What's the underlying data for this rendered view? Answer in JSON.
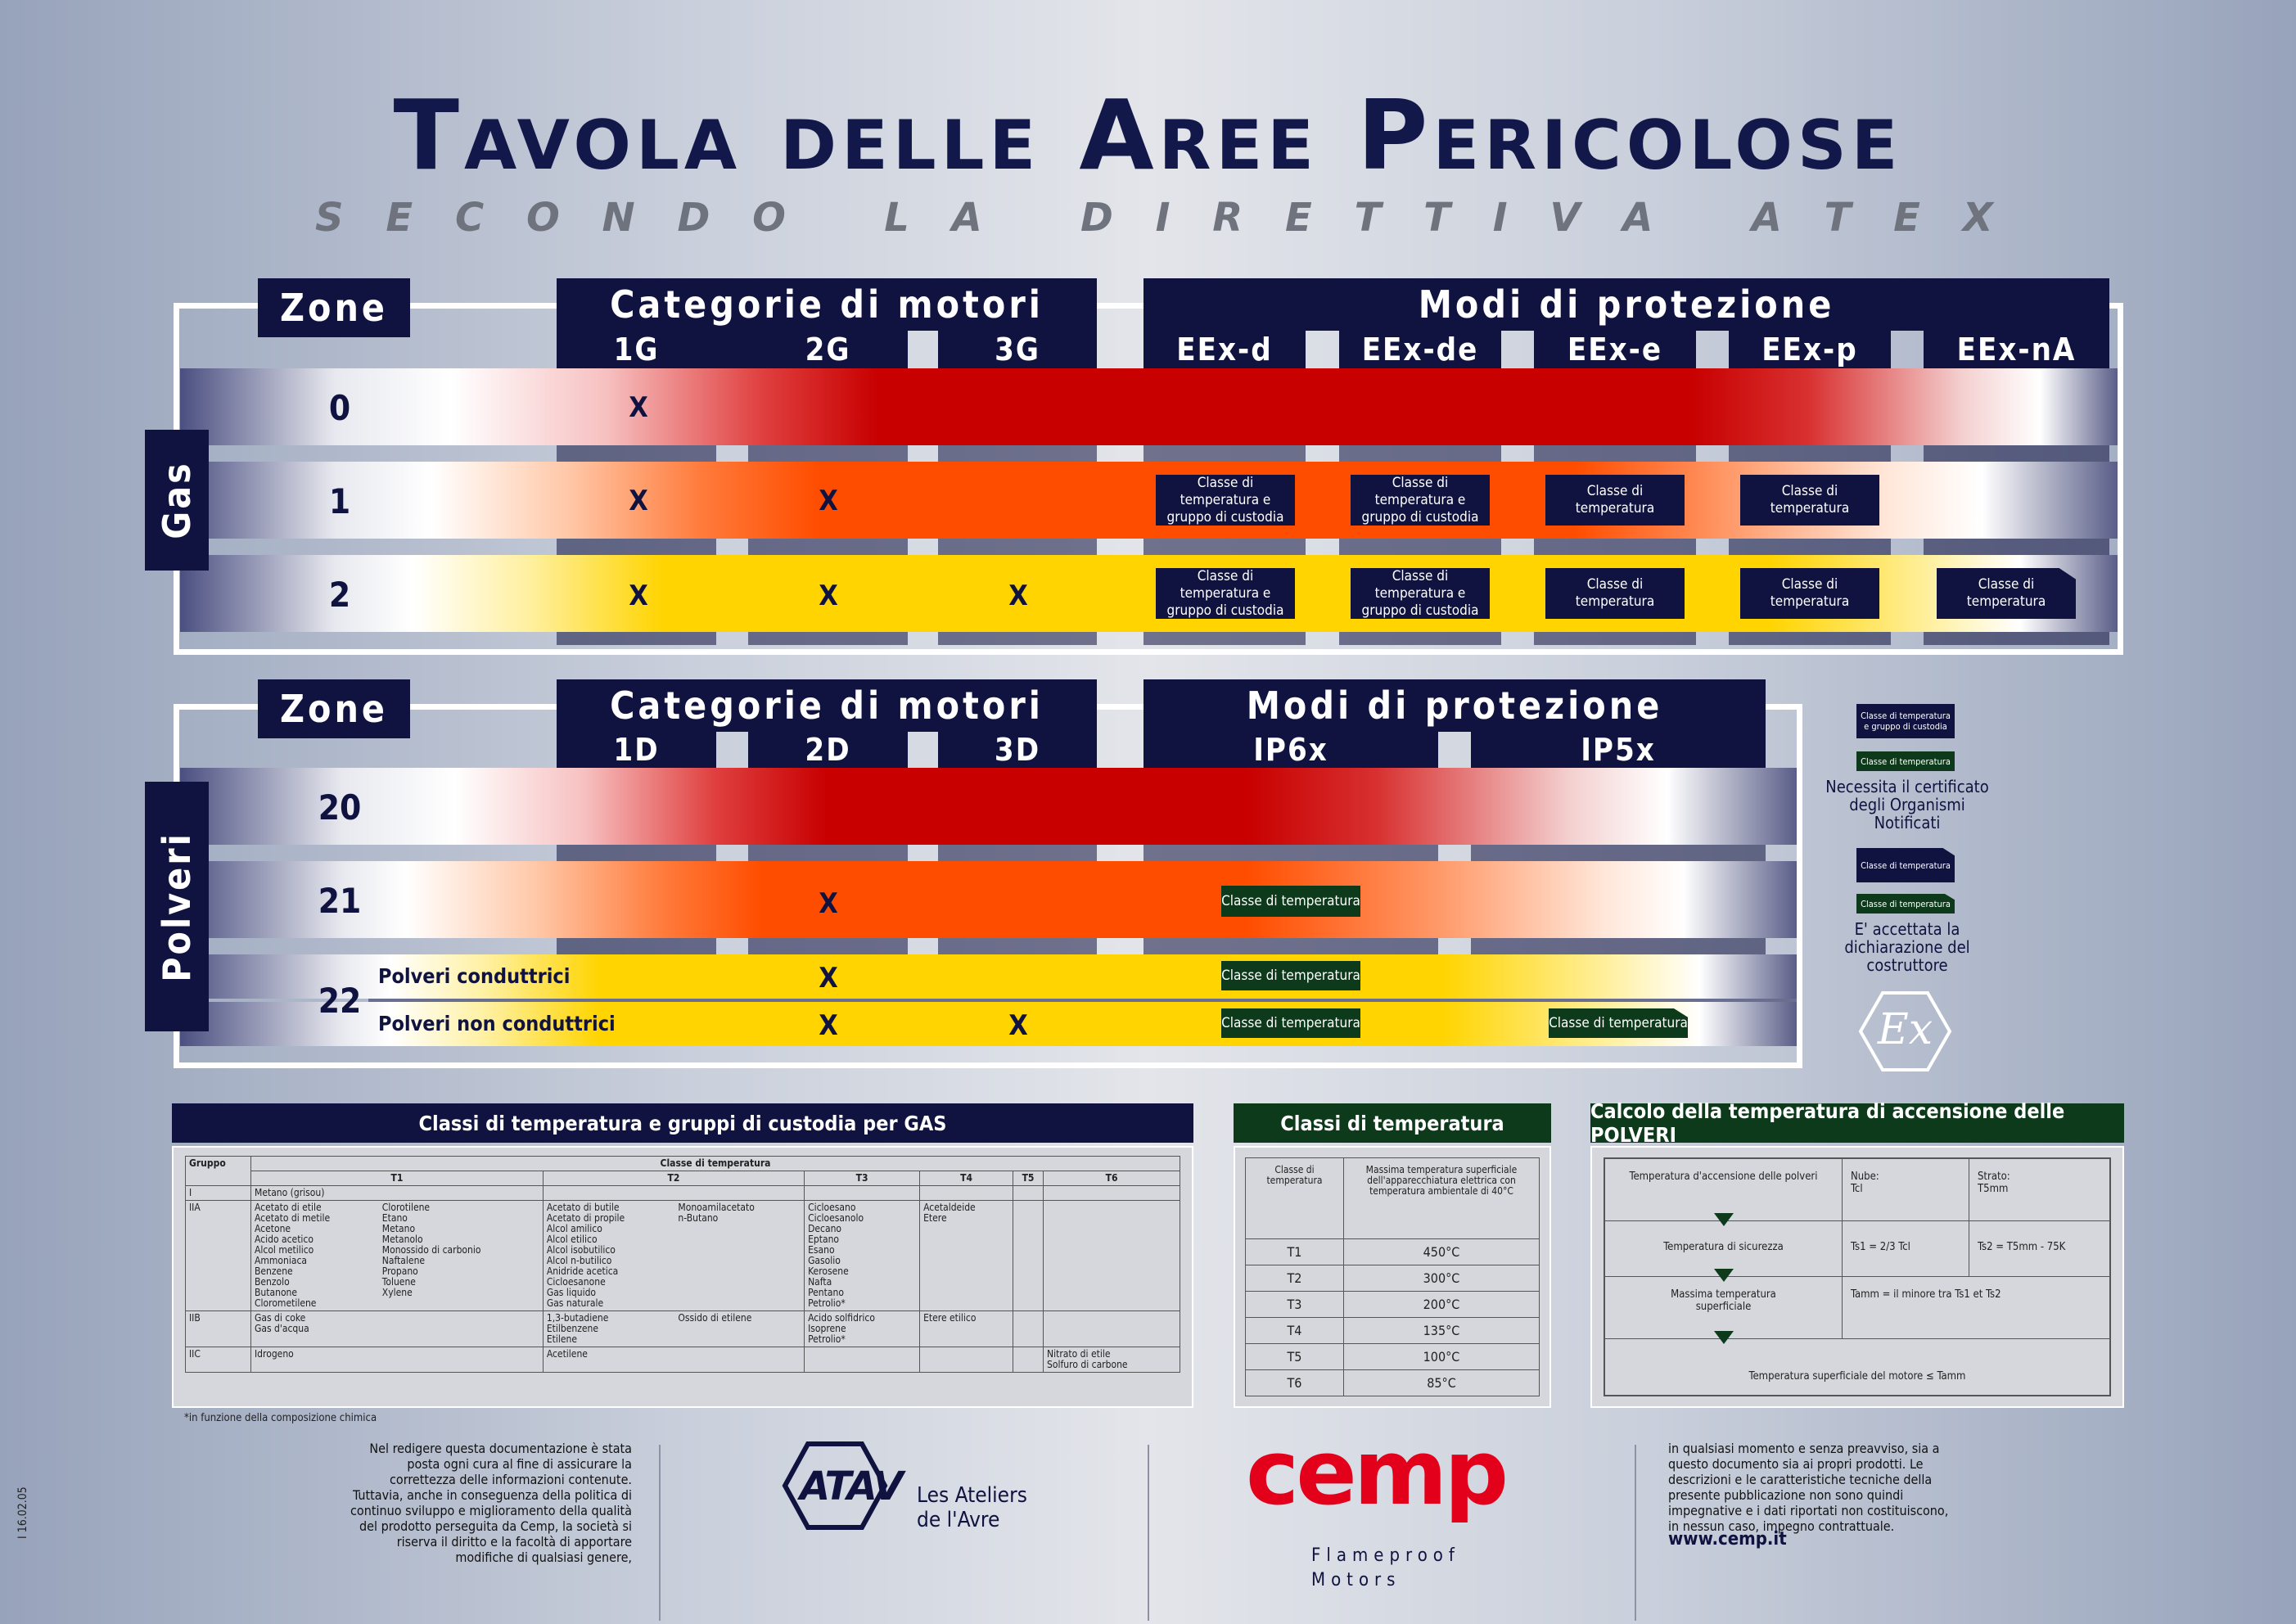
{
  "header": {
    "title": "Tavola delle Aree Pericolose",
    "subtitle_letters": [
      "S",
      "E",
      "C",
      "O",
      "N",
      "D",
      "O",
      "",
      "L",
      "A",
      "",
      "D",
      "I",
      "R",
      "E",
      "T",
      "T",
      "I",
      "V",
      "A",
      "",
      "A",
      "T",
      "E",
      "X"
    ]
  },
  "gas": {
    "label": "Gas",
    "zone_header": "Zone",
    "cat_header": "Categorie di motori",
    "cats": [
      "1G",
      "2G",
      "3G"
    ],
    "modi_header": "Modi di protezione",
    "modi": [
      "EEx-d",
      "EEx-de",
      "EEx-e",
      "EEx-p",
      "EEx-nA"
    ],
    "rows": [
      {
        "zone": "0",
        "x": [
          "X",
          "",
          ""
        ]
      },
      {
        "zone": "1",
        "x": [
          "X",
          "X",
          ""
        ]
      },
      {
        "zone": "2",
        "x": [
          "X",
          "X",
          "X"
        ]
      }
    ],
    "box_tg": "Classe di temperatura e gruppo di custodia",
    "box_t": "Classe di temperatura"
  },
  "polveri": {
    "label": "Polveri",
    "zone_header": "Zone",
    "cat_header": "Categorie di motori",
    "cats": [
      "1D",
      "2D",
      "3D"
    ],
    "modi_header": "Modi di protezione",
    "modi": [
      "IP6x",
      "IP5x"
    ],
    "zones": [
      "20",
      "21",
      "22"
    ],
    "cond": "Polveri conduttrici",
    "noncond": "Polveri non conduttrici",
    "x": "X",
    "box_t": "Classe di temperatura"
  },
  "legend": {
    "box1": "Classe di temperatura e gruppo di custodia",
    "box2": "Classe di temperatura",
    "text1": "Necessita il certificato degli Organismi Notificati",
    "box3": "Classe di temperatura",
    "box4": "Classe di temperatura",
    "text2": "E' accettata la dichiarazione del costruttore",
    "ex": "Ex"
  },
  "gas_table": {
    "title": "Classi di temperatura e gruppi di custodia per GAS",
    "gruppo": "Gruppo",
    "classe": "Classe di temperatura",
    "cols": [
      "T1",
      "T2",
      "T3",
      "T4",
      "T5",
      "T6"
    ],
    "rows": [
      {
        "g": "I",
        "t1a": "Metano (grisou)",
        "t1b": "",
        "t2a": "",
        "t2b": "",
        "t3": "",
        "t4": "",
        "t5": "",
        "t6": ""
      },
      {
        "g": "IIA",
        "t1a": "Acetato di etile\nAcetato di metile\nAcetone\nAcido acetico\nAlcol metilico\nAmmoniaca\nBenzene\nBenzolo\nButanone\nClorometilene",
        "t1b": "Clorotilene\nEtano\nMetano\nMetanolo\nMonossido di carbonio\nNaftalene\nPropano\nToluene\nXylene",
        "t2a": "Acetato di butile\nAcetato di propile\nAlcol amilico\nAlcol etilico\nAlcol isobutilico\nAlcol n-butilico\nAnidride acetica\nCicloesanone\nGas liquido\nGas naturale",
        "t2b": "Monoamilacetato\nn-Butano",
        "t3": "Cicloesano\nCicloesanolo\nDecano\nEptano\nEsano\nGasolio\nKerosene\nNafta\nPentano\nPetrolio*",
        "t4": "Acetaldeide\nEtere",
        "t5": "",
        "t6": ""
      },
      {
        "g": "IIB",
        "t1a": "Gas di coke\nGas d'acqua",
        "t1b": "",
        "t2a": "1,3-butadiene\nEtilbenzene\nEtilene",
        "t2b": "Ossido di etilene",
        "t3": "Acido solfidrico\nIsoprene\nPetrolio*",
        "t4": "Etere etilico",
        "t5": "",
        "t6": ""
      },
      {
        "g": "IIC",
        "t1a": "Idrogeno",
        "t1b": "",
        "t2a": "Acetilene",
        "t2b": "",
        "t3": "",
        "t4": "",
        "t5": "",
        "t6": "Nitrato di etile\nSolfuro di carbone"
      }
    ],
    "note": "*in funzione della composizione chimica"
  },
  "temp_table": {
    "title": "Classi di temperatura",
    "h1": "Classe di temperatura",
    "h2": "Massima temperatura superficiale dell'apparecchiatura elettrica con temperatura ambientale di 40°C",
    "rows": [
      [
        "T1",
        "450°C"
      ],
      [
        "T2",
        "300°C"
      ],
      [
        "T3",
        "200°C"
      ],
      [
        "T4",
        "135°C"
      ],
      [
        "T5",
        "100°C"
      ],
      [
        "T6",
        "85°C"
      ]
    ]
  },
  "polveri_calc": {
    "title": "Calcolo della temperatura di accensione delle POLVERI",
    "r1a": "Temperatura d'accensione delle polveri",
    "r1b": "Nube:\nTcl",
    "r1c": "Strato:\nT5mm",
    "r2a": "Temperatura di sicurezza",
    "r2b": "Ts1 = 2/3 Tcl",
    "r2c": "Ts2 = T5mm - 75K",
    "r3a": "Massima temperatura superficiale",
    "r3b": "Tamm = il minore tra Ts1 et Ts2",
    "r4": "Temperatura superficiale del motore ≤ Tamm"
  },
  "footer": {
    "code": "I 16.02.05",
    "left": "Nel redigere questa documentazione è stata posta ogni cura al fine di assicurare la correttezza delle informazioni contenute. Tuttavia, anche in conseguenza della politica di continuo sviluppo e miglioramento della qualità del prodotto perseguita da Cemp, la società si riserva il diritto e la facoltà di apportare modifiche di qualsiasi genere,",
    "atav": "ATAV",
    "atav_sub1": "Les Ateliers",
    "atav_sub2": "de l'Avre",
    "cemp": "cemp",
    "cemp_sub1": "Flameproof",
    "cemp_sub2": "Motors",
    "right": "in qualsiasi momento e senza preavviso, sia a questo documento sia ai propri prodotti. Le descrizioni e le caratteristiche tecniche della presente pubblicazione non sono quindi impegnative e i dati riportati non costituiscono, in nessun caso, impegno contrattuale.",
    "url": "www.cemp.it"
  },
  "colors": {
    "navy": "#10133f",
    "red": "#c80000",
    "orange": "#ff4d00",
    "yellow": "#ffd400",
    "green": "#0c3a1a",
    "cemp_red": "#e3001b"
  }
}
